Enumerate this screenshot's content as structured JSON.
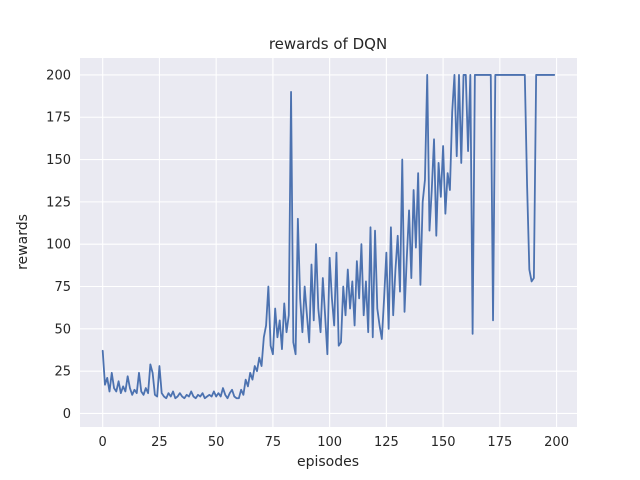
{
  "chart_data": {
    "type": "line",
    "title": "rewards of DQN",
    "xlabel": "episodes",
    "ylabel": "rewards",
    "x_start": 0,
    "x_step": 1,
    "values": [
      37,
      17,
      21,
      13,
      24,
      15,
      13,
      19,
      12,
      16,
      13,
      22,
      15,
      11,
      14,
      12,
      24,
      13,
      11,
      15,
      12,
      29,
      24,
      11,
      10,
      28,
      12,
      10,
      9,
      12,
      10,
      13,
      9,
      10,
      12,
      10,
      9,
      11,
      10,
      13,
      10,
      9,
      11,
      10,
      12,
      9,
      10,
      11,
      10,
      13,
      10,
      12,
      10,
      15,
      11,
      9,
      12,
      14,
      10,
      9,
      9,
      14,
      11,
      20,
      16,
      24,
      20,
      28,
      25,
      33,
      28,
      45,
      52,
      75,
      40,
      35,
      62,
      45,
      55,
      38,
      65,
      48,
      58,
      190,
      42,
      35,
      115,
      68,
      48,
      75,
      58,
      42,
      88,
      55,
      100,
      62,
      48,
      80,
      58,
      35,
      92,
      68,
      52,
      95,
      40,
      42,
      75,
      58,
      85,
      62,
      78,
      52,
      90,
      68,
      100,
      58,
      78,
      48,
      110,
      45,
      108,
      62,
      52,
      44,
      68,
      95,
      50,
      110,
      58,
      85,
      105,
      72,
      150,
      60,
      92,
      120,
      80,
      132,
      98,
      142,
      76,
      125,
      138,
      200,
      108,
      132,
      162,
      105,
      148,
      128,
      158,
      118,
      142,
      132,
      178,
      200,
      152,
      200,
      148,
      200,
      200,
      155,
      200,
      47,
      200,
      200,
      200,
      200,
      200,
      200,
      200,
      200,
      55,
      200,
      200,
      200,
      200,
      200,
      200,
      200,
      200,
      200,
      200,
      200,
      200,
      200,
      200,
      135,
      85,
      78,
      80,
      200,
      200,
      200,
      200,
      200,
      200,
      200,
      200,
      200
    ],
    "xticks": [
      0,
      25,
      50,
      75,
      100,
      125,
      150,
      175,
      200
    ],
    "yticks": [
      0,
      25,
      50,
      75,
      100,
      125,
      150,
      175,
      200
    ],
    "xlim": [
      -10,
      209
    ],
    "ylim": [
      -8,
      210
    ],
    "grid": true,
    "legend": null,
    "line_color": "#4c72b0",
    "plot_bg": "#eaeaf2",
    "grid_color": "#ffffff",
    "text_color": "#262626"
  }
}
